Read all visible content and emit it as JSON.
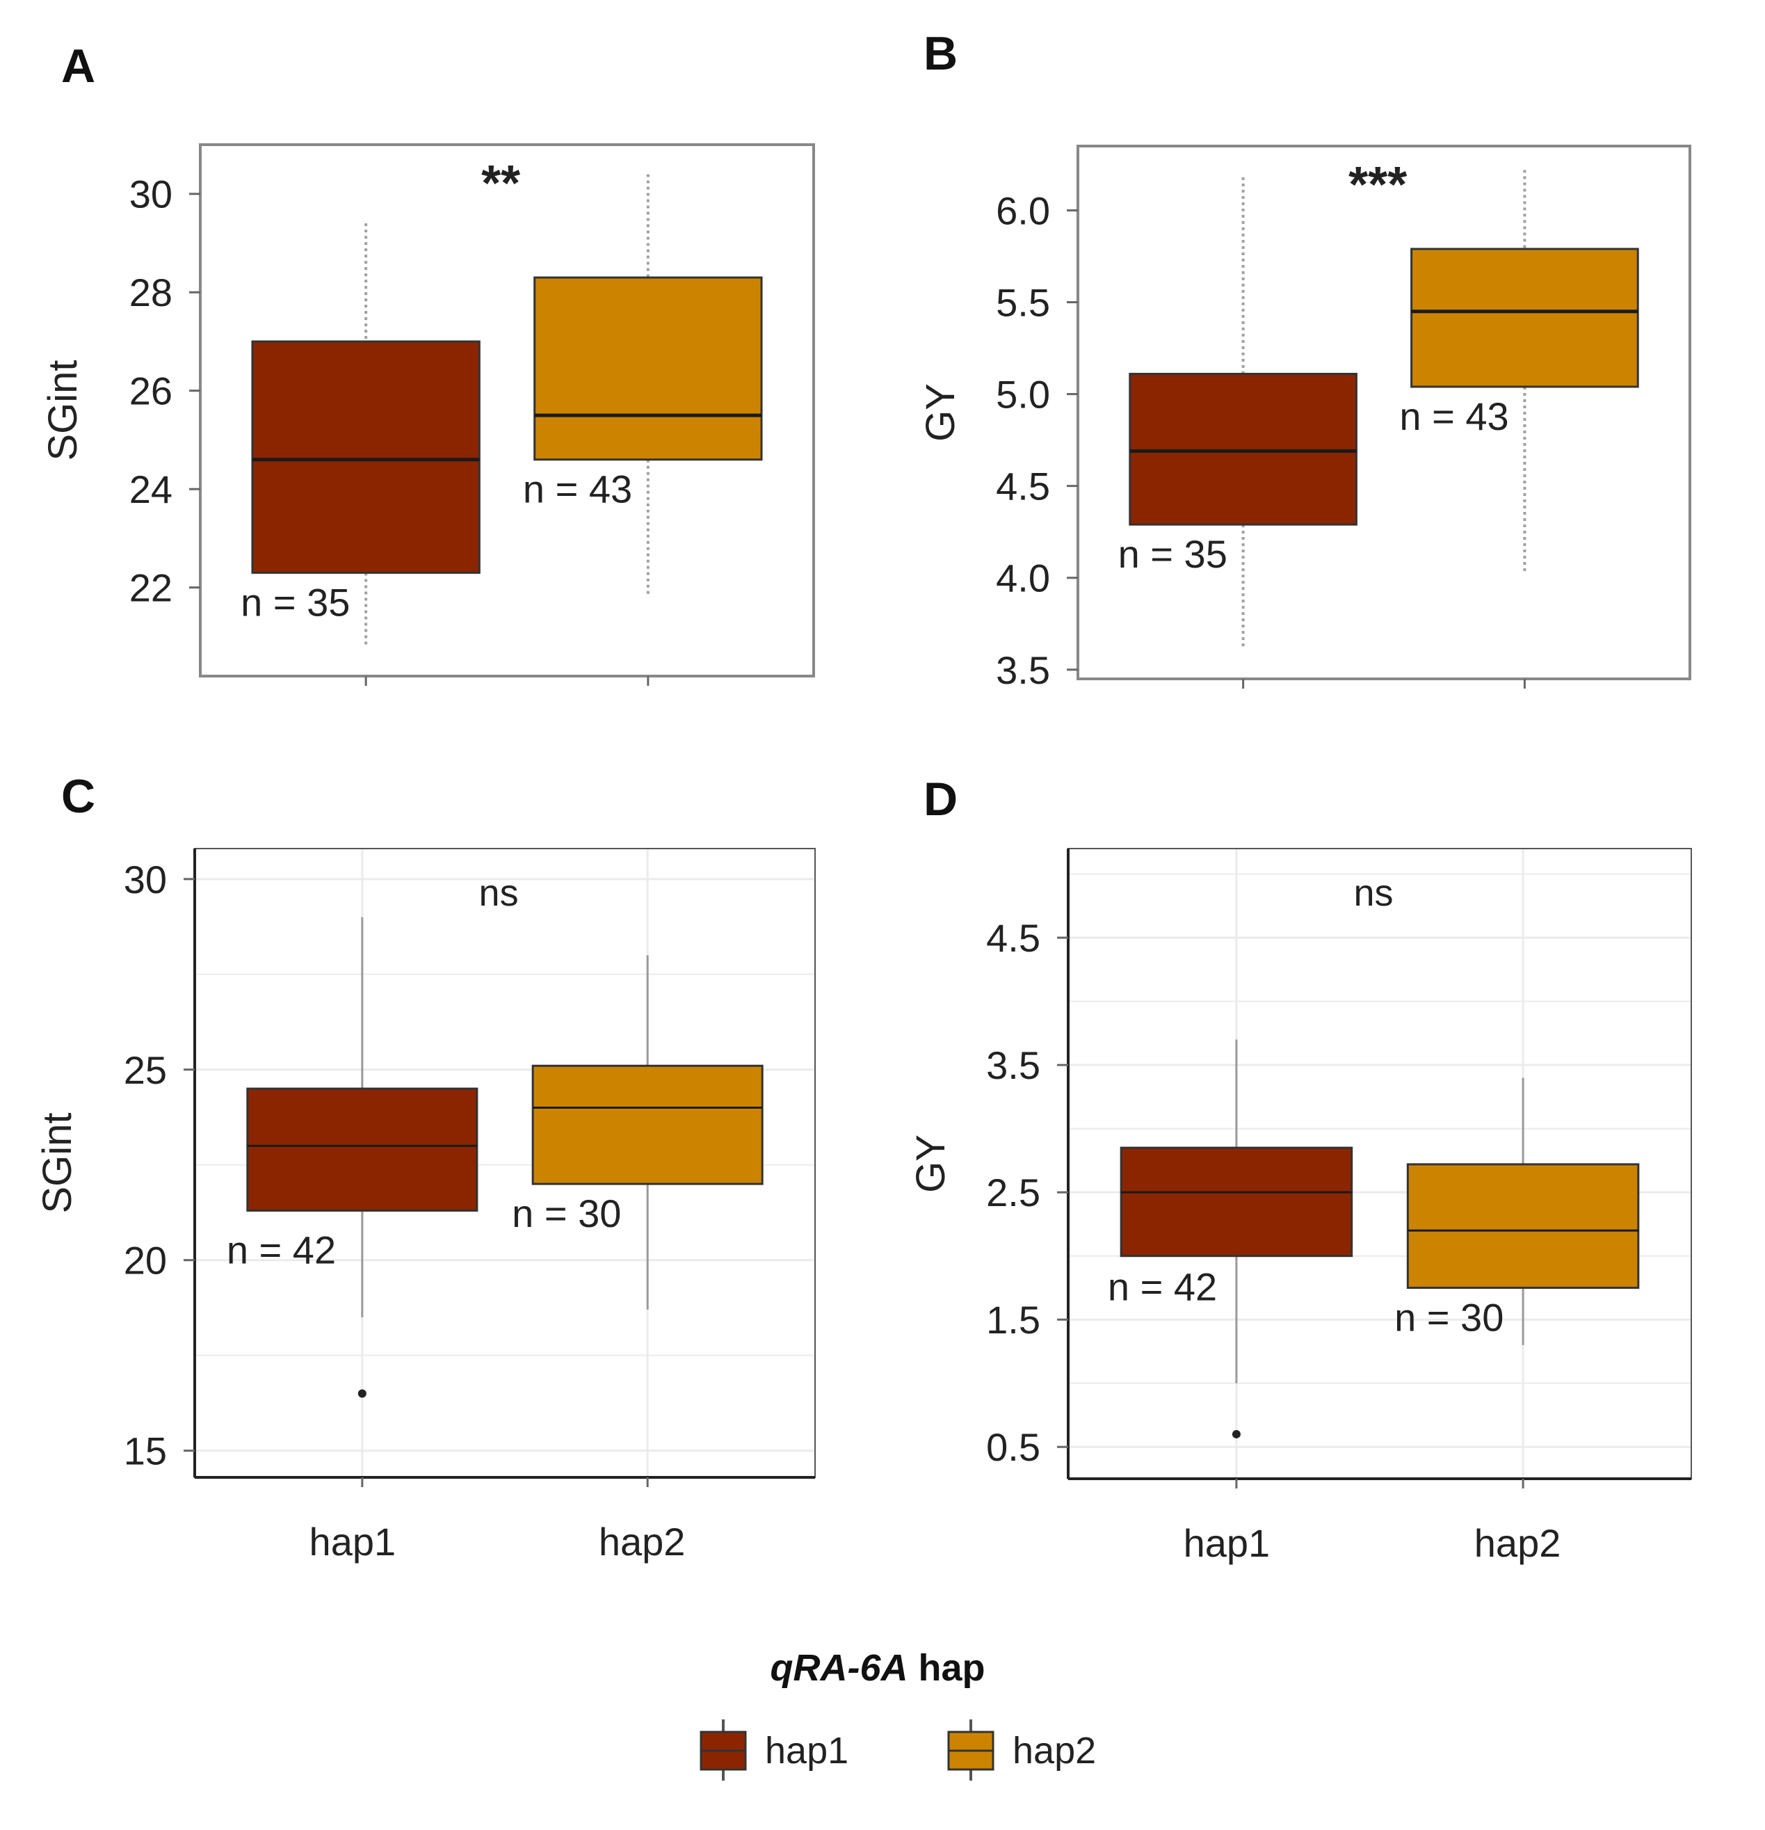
{
  "figure": {
    "legend": {
      "title_italic": "qRA-6A",
      "title_rest": " hap",
      "items": [
        "hap1",
        "hap2"
      ]
    },
    "colors": {
      "hap1": "#8B2500",
      "hap2": "#CC8400",
      "median": "#1a1a1a",
      "axis": "#333333"
    }
  },
  "chart_data": [
    {
      "panel": "A",
      "type": "boxplot",
      "ylabel": "SGint",
      "ylim": [
        20.2,
        31.0
      ],
      "yticks": [
        "22",
        "24",
        "26",
        "28",
        "30"
      ],
      "significance": "**",
      "style": "base",
      "categories": [
        "hap1",
        "hap2"
      ],
      "show_xlabels": false,
      "series": [
        {
          "name": "hap1",
          "min": 20.8,
          "q1": 22.3,
          "median": 24.6,
          "q3": 27.0,
          "max": 29.4,
          "n_label": "n = 35",
          "outliers": []
        },
        {
          "name": "hap2",
          "min": 21.8,
          "q1": 24.6,
          "median": 25.5,
          "q3": 28.3,
          "max": 30.4,
          "n_label": "n = 43",
          "outliers": []
        }
      ]
    },
    {
      "panel": "B",
      "type": "boxplot",
      "ylabel": "GY",
      "ylim": [
        3.45,
        6.35
      ],
      "yticks": [
        "3.5",
        "4.0",
        "4.5",
        "5.0",
        "5.5",
        "6.0"
      ],
      "significance": "***",
      "style": "base",
      "categories": [
        "hap1",
        "hap2"
      ],
      "show_xlabels": false,
      "series": [
        {
          "name": "hap1",
          "min": 3.62,
          "q1": 4.29,
          "median": 4.69,
          "q3": 5.11,
          "max": 6.18,
          "n_label": "n = 35",
          "outliers": []
        },
        {
          "name": "hap2",
          "min": 4.02,
          "q1": 5.04,
          "median": 5.45,
          "q3": 5.79,
          "max": 6.22,
          "n_label": "n = 43",
          "outliers": []
        }
      ]
    },
    {
      "panel": "C",
      "type": "boxplot",
      "ylabel": "SGint",
      "ylim": [
        14.3,
        30.8
      ],
      "yticks": [
        "15",
        "20",
        "25",
        "30"
      ],
      "significance": "ns",
      "style": "ggplot",
      "categories": [
        "hap1",
        "hap2"
      ],
      "show_xlabels": true,
      "series": [
        {
          "name": "hap1",
          "min": 18.5,
          "q1": 21.3,
          "median": 23.0,
          "q3": 24.5,
          "max": 29.0,
          "n_label": "n = 42",
          "outliers": [
            16.5
          ]
        },
        {
          "name": "hap2",
          "min": 18.7,
          "q1": 22.0,
          "median": 24.0,
          "q3": 25.1,
          "max": 28.0,
          "n_label": "n = 30",
          "outliers": []
        }
      ]
    },
    {
      "panel": "D",
      "type": "boxplot",
      "ylabel": "GY",
      "ylim": [
        0.25,
        5.2
      ],
      "yticks": [
        "0.5",
        "1.5",
        "2.5",
        "3.5",
        "4.5"
      ],
      "significance": "ns",
      "style": "ggplot",
      "categories": [
        "hap1",
        "hap2"
      ],
      "show_xlabels": true,
      "series": [
        {
          "name": "hap1",
          "min": 1.0,
          "q1": 2.0,
          "median": 2.5,
          "q3": 2.85,
          "max": 3.7,
          "n_label": "n = 42",
          "outliers": [
            0.6
          ]
        },
        {
          "name": "hap2",
          "min": 1.3,
          "q1": 1.75,
          "median": 2.2,
          "q3": 2.72,
          "max": 3.4,
          "n_label": "n = 30",
          "outliers": []
        }
      ]
    }
  ]
}
